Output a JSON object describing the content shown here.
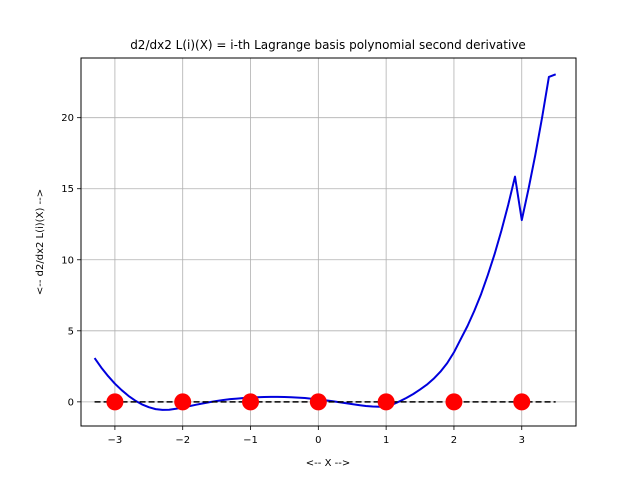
{
  "chart_data": {
    "type": "line",
    "title": "d2/dx2 L(i)(X) = i-th Lagrange basis polynomial second derivative",
    "xlabel": "<-- X -->",
    "ylabel": "<-- d2/dx2 L(i)(X) -->",
    "xlim": [
      -3.5,
      3.8
    ],
    "ylim": [
      -1.7,
      24.2
    ],
    "xticks": [
      -3,
      -2,
      -1,
      0,
      1,
      2,
      3
    ],
    "yticks": [
      0,
      5,
      10,
      15,
      20
    ],
    "grid": true,
    "series": [
      {
        "kind": "curve",
        "color": "#0000dd",
        "x": [
          -3.3,
          -3.2,
          -3.1,
          -3.0,
          -2.9,
          -2.8,
          -2.7,
          -2.6,
          -2.5,
          -2.4,
          -2.3,
          -2.2,
          -2.1,
          -2.0,
          -1.9,
          -1.8,
          -1.7,
          -1.6,
          -1.5,
          -1.4,
          -1.3,
          -1.2,
          -1.1,
          -1.0,
          -0.9,
          -0.8,
          -0.7,
          -0.6,
          -0.5,
          -0.4,
          -0.3,
          -0.2,
          -0.1,
          0.0,
          0.1,
          0.2,
          0.3,
          0.4,
          0.5,
          0.6,
          0.7,
          0.8,
          0.9,
          1.0,
          1.1,
          1.2,
          1.3,
          1.4,
          1.5,
          1.6,
          1.7,
          1.8,
          1.9,
          2.0,
          2.1,
          2.2,
          2.3,
          2.4,
          2.5,
          2.6,
          2.7,
          2.8,
          2.9,
          3.0,
          3.1,
          3.2,
          3.3,
          3.4,
          3.5
        ],
        "y": [
          3.08,
          2.41,
          1.81,
          1.28,
          0.82,
          0.42,
          0.09,
          -0.18,
          -0.38,
          -0.51,
          -0.57,
          -0.56,
          -0.49,
          -0.39,
          -0.3,
          -0.2,
          -0.11,
          -0.02,
          0.06,
          0.13,
          0.19,
          0.23,
          0.27,
          0.3,
          0.32,
          0.34,
          0.35,
          0.35,
          0.34,
          0.33,
          0.3,
          0.27,
          0.22,
          0.17,
          0.11,
          0.05,
          -0.02,
          -0.09,
          -0.16,
          -0.23,
          -0.29,
          -0.33,
          -0.34,
          -0.3,
          -0.17,
          0.04,
          0.28,
          0.55,
          0.86,
          1.21,
          1.62,
          2.12,
          2.73,
          3.48,
          4.41,
          5.34,
          6.4,
          7.58,
          8.92,
          10.4,
          12.05,
          13.86,
          15.85,
          12.79,
          14.98,
          17.38,
          20.01,
          22.87,
          23.05
        ]
      },
      {
        "kind": "dashed-line",
        "color": "#000000",
        "x": [
          -3.3,
          3.5
        ],
        "y": [
          0,
          0
        ]
      },
      {
        "kind": "markers",
        "color": "#ff0000",
        "x": [
          -3,
          -2,
          -1,
          0,
          1,
          2,
          3
        ],
        "y": [
          0,
          0,
          0,
          0,
          0,
          0,
          0
        ]
      }
    ]
  }
}
